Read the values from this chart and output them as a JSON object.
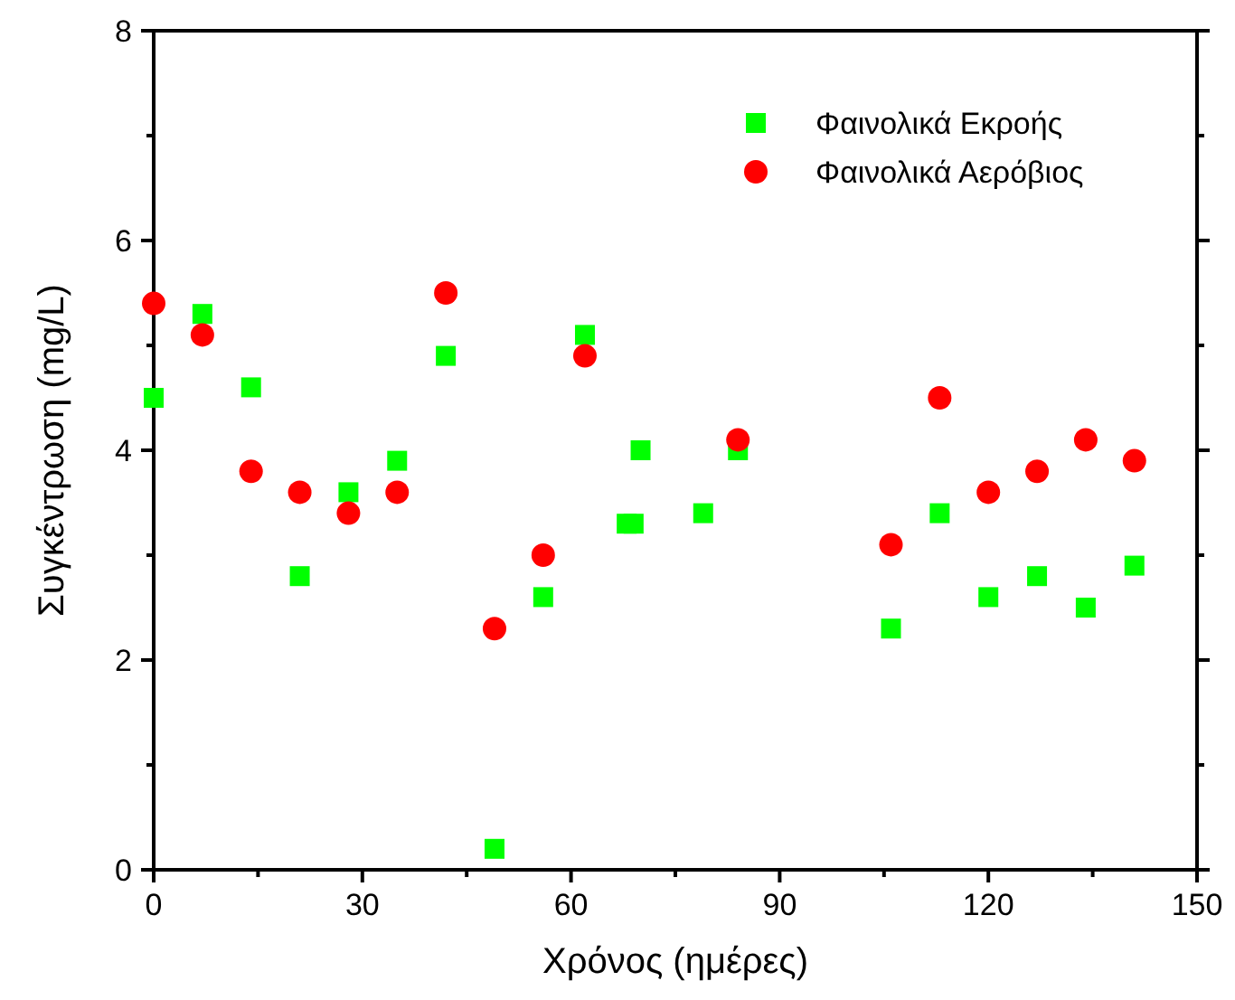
{
  "chart_data": {
    "type": "scatter",
    "xlabel": "Χρόνος (ημέρες)",
    "ylabel": "Συγκέντρωση (mg/L)",
    "xlim": [
      0,
      150
    ],
    "ylim": [
      0,
      8
    ],
    "xticks": [
      0,
      {
        "value": 15,
        "label": null
      },
      30,
      {
        "value": 45,
        "label": null
      },
      60,
      {
        "value": 75,
        "label": null
      },
      90,
      {
        "value": 105,
        "label": null
      },
      120,
      {
        "value": 135,
        "label": null
      },
      150
    ],
    "yticks": [
      0,
      {
        "value": 1,
        "label": null
      },
      2,
      {
        "value": 3,
        "label": null
      },
      4,
      {
        "value": 5,
        "label": null
      },
      6,
      {
        "value": 7,
        "label": null
      },
      8
    ],
    "grid": false,
    "legend": "top right",
    "series": [
      {
        "name": "Φαινολικά Εκροής",
        "color": "#00ff00",
        "marker": "square",
        "x": [
          0,
          7,
          14,
          21,
          28,
          35,
          42,
          49,
          56,
          62,
          68,
          69,
          70,
          79,
          84,
          106,
          113,
          120,
          127,
          134,
          141
        ],
        "values": [
          4.5,
          5.3,
          4.6,
          2.8,
          3.6,
          3.9,
          4.9,
          0.2,
          2.6,
          5.1,
          3.3,
          3.3,
          4.0,
          3.4,
          4.0,
          2.3,
          3.4,
          2.6,
          2.8,
          2.5,
          2.9
        ]
      },
      {
        "name": "Φαινολικά Αερόβιος",
        "color": "#ff0000",
        "marker": "circle",
        "x": [
          0,
          7,
          14,
          21,
          28,
          35,
          42,
          49,
          56,
          62,
          84,
          106,
          113,
          120,
          127,
          134,
          141
        ],
        "values": [
          5.4,
          5.1,
          3.8,
          3.6,
          3.4,
          3.6,
          5.5,
          2.3,
          3.0,
          4.9,
          4.1,
          3.1,
          4.5,
          3.6,
          3.8,
          4.1,
          3.9
        ]
      }
    ]
  }
}
